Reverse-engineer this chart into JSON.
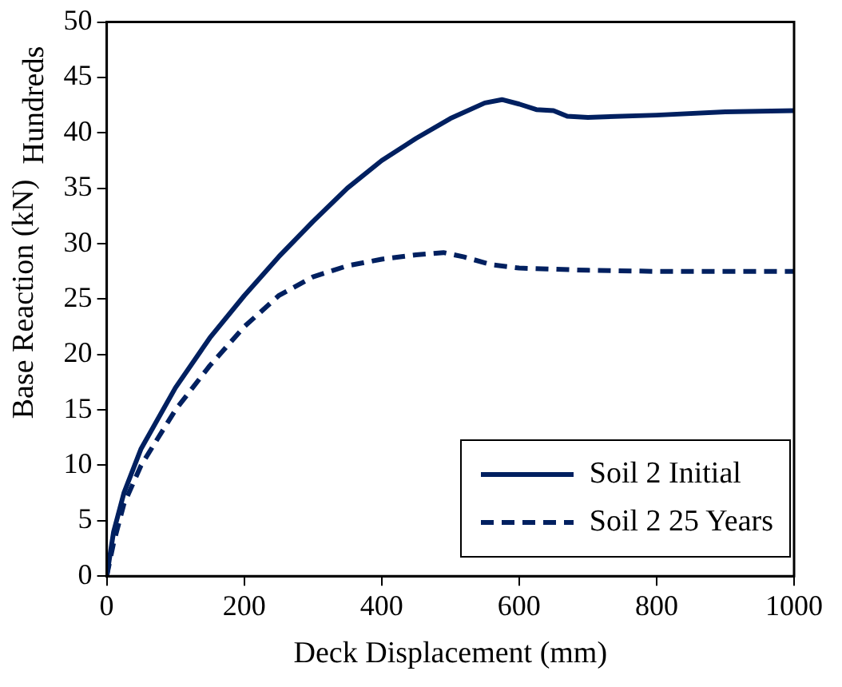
{
  "chart_data": {
    "type": "line",
    "xlabel": "Deck Displacement (mm)",
    "ylabel": "Base Reaction (kN)",
    "annotations": [
      "Hundreds"
    ],
    "xlim": [
      0,
      1000
    ],
    "xticks": [
      0,
      200,
      400,
      600,
      800,
      1000
    ],
    "ylim": [
      0,
      50
    ],
    "yticks": [
      0,
      5,
      10,
      15,
      20,
      25,
      30,
      35,
      40,
      45,
      50
    ],
    "grid": false,
    "legend": "bottom right",
    "marker": "none",
    "series": [
      {
        "name": "Soil 2 Initial",
        "color": "#002060",
        "line_style": "solid",
        "x": [
          0,
          10,
          25,
          50,
          100,
          150,
          200,
          250,
          300,
          350,
          400,
          450,
          500,
          550,
          575,
          600,
          625,
          650,
          670,
          700,
          800,
          900,
          1000
        ],
        "values": [
          0,
          4,
          7.5,
          11.5,
          17,
          21.5,
          25.3,
          28.8,
          32,
          35,
          37.5,
          39.5,
          41.3,
          42.7,
          43,
          42.6,
          42.1,
          42,
          41.5,
          41.4,
          41.6,
          41.9,
          42
        ]
      },
      {
        "name": "Soil 2 25 Years",
        "color": "#002060",
        "line_style": "dashed",
        "x": [
          0,
          10,
          25,
          50,
          100,
          150,
          200,
          250,
          300,
          350,
          400,
          450,
          490,
          520,
          560,
          600,
          700,
          800,
          1000
        ],
        "values": [
          0,
          3,
          6.5,
          10,
          15,
          19,
          22.5,
          25.3,
          27,
          28,
          28.6,
          29,
          29.2,
          28.8,
          28.1,
          27.8,
          27.6,
          27.5,
          27.5
        ]
      }
    ]
  }
}
